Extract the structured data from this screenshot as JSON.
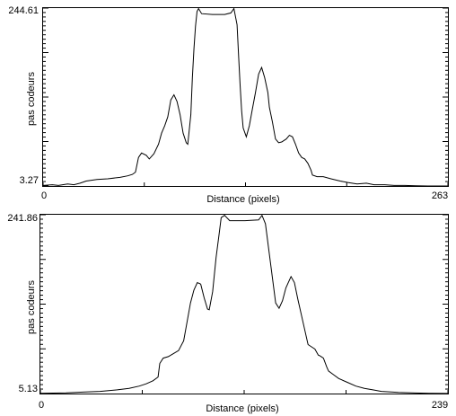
{
  "chart_data": [
    {
      "type": "line",
      "xlabel": "Distance (pixels)",
      "ylabel": "pas codeurs",
      "xlim": [
        0,
        263
      ],
      "ylim": [
        3.27,
        244.61
      ],
      "x_tick_labels": [
        "0",
        "263"
      ],
      "y_tick_labels": [
        "3.27",
        "244.61"
      ],
      "grid": false,
      "line_color": "#000000",
      "points": [
        [
          0,
          4
        ],
        [
          6,
          5
        ],
        [
          10,
          4
        ],
        [
          16,
          6
        ],
        [
          20,
          5
        ],
        [
          24,
          7
        ],
        [
          28,
          10
        ],
        [
          35,
          12
        ],
        [
          42,
          13
        ],
        [
          50,
          15
        ],
        [
          55,
          17
        ],
        [
          58,
          19
        ],
        [
          60,
          22
        ],
        [
          62,
          42
        ],
        [
          64,
          48
        ],
        [
          67,
          45
        ],
        [
          69,
          40
        ],
        [
          72,
          47
        ],
        [
          75,
          60
        ],
        [
          77,
          75
        ],
        [
          79,
          85
        ],
        [
          81,
          97
        ],
        [
          83,
          120
        ],
        [
          85,
          127
        ],
        [
          87,
          118
        ],
        [
          89,
          100
        ],
        [
          91,
          75
        ],
        [
          93,
          62
        ],
        [
          94,
          60
        ],
        [
          96,
          100
        ],
        [
          97,
          150
        ],
        [
          98,
          190
        ],
        [
          99,
          220
        ],
        [
          100,
          240
        ],
        [
          101,
          244
        ],
        [
          103,
          237
        ],
        [
          110,
          236
        ],
        [
          118,
          236
        ],
        [
          122,
          238
        ],
        [
          124,
          244
        ],
        [
          126,
          222
        ],
        [
          127,
          180
        ],
        [
          128,
          140
        ],
        [
          129,
          105
        ],
        [
          130,
          82
        ],
        [
          132,
          70
        ],
        [
          134,
          85
        ],
        [
          136,
          108
        ],
        [
          138,
          130
        ],
        [
          140,
          155
        ],
        [
          142,
          164
        ],
        [
          144,
          150
        ],
        [
          146,
          130
        ],
        [
          147,
          110
        ],
        [
          149,
          90
        ],
        [
          151,
          67
        ],
        [
          153,
          62
        ],
        [
          155,
          63
        ],
        [
          158,
          67
        ],
        [
          160,
          72
        ],
        [
          162,
          70
        ],
        [
          164,
          60
        ],
        [
          166,
          48
        ],
        [
          168,
          42
        ],
        [
          170,
          40
        ],
        [
          172,
          34
        ],
        [
          174,
          25
        ],
        [
          175,
          18
        ],
        [
          178,
          16
        ],
        [
          182,
          16
        ],
        [
          187,
          13
        ],
        [
          193,
          10
        ],
        [
          198,
          8
        ],
        [
          204,
          6
        ],
        [
          210,
          7
        ],
        [
          215,
          5
        ],
        [
          222,
          5
        ],
        [
          228,
          4
        ],
        [
          235,
          4
        ],
        [
          242,
          3.5
        ],
        [
          250,
          3.3
        ],
        [
          263,
          3.3
        ]
      ]
    },
    {
      "type": "line",
      "xlabel": "Distance (pixels)",
      "ylabel": "pas codeurs",
      "xlim": [
        0,
        239
      ],
      "ylim": [
        5.13,
        241.86
      ],
      "x_tick_labels": [
        "0",
        "239"
      ],
      "y_tick_labels": [
        "5.13",
        "241.86"
      ],
      "grid": false,
      "line_color": "#000000",
      "points": [
        [
          0,
          5.5
        ],
        [
          15,
          6
        ],
        [
          25,
          7
        ],
        [
          35,
          8
        ],
        [
          45,
          10
        ],
        [
          52,
          12
        ],
        [
          58,
          15
        ],
        [
          62,
          18
        ],
        [
          66,
          22
        ],
        [
          69,
          27
        ],
        [
          70,
          45
        ],
        [
          72,
          52
        ],
        [
          75,
          54
        ],
        [
          78,
          58
        ],
        [
          81,
          62
        ],
        [
          84,
          75
        ],
        [
          86,
          100
        ],
        [
          88,
          125
        ],
        [
          90,
          142
        ],
        [
          92,
          152
        ],
        [
          94,
          150
        ],
        [
          96,
          132
        ],
        [
          98,
          117
        ],
        [
          99,
          116
        ],
        [
          101,
          140
        ],
        [
          103,
          185
        ],
        [
          105,
          220
        ],
        [
          106,
          238
        ],
        [
          108,
          241
        ],
        [
          111,
          234
        ],
        [
          120,
          234
        ],
        [
          128,
          235
        ],
        [
          130,
          241
        ],
        [
          132,
          230
        ],
        [
          134,
          195
        ],
        [
          136,
          160
        ],
        [
          138,
          125
        ],
        [
          140,
          118
        ],
        [
          142,
          128
        ],
        [
          144,
          145
        ],
        [
          147,
          160
        ],
        [
          149,
          152
        ],
        [
          151,
          130
        ],
        [
          153,
          110
        ],
        [
          155,
          90
        ],
        [
          157,
          70
        ],
        [
          159,
          67
        ],
        [
          161,
          64
        ],
        [
          163,
          56
        ],
        [
          164,
          55
        ],
        [
          166,
          52
        ],
        [
          168,
          40
        ],
        [
          169,
          35
        ],
        [
          172,
          30
        ],
        [
          175,
          25
        ],
        [
          180,
          20
        ],
        [
          185,
          15
        ],
        [
          190,
          12
        ],
        [
          195,
          10
        ],
        [
          200,
          8
        ],
        [
          210,
          6.5
        ],
        [
          220,
          5.8
        ],
        [
          228,
          5.4
        ],
        [
          239,
          5.2
        ]
      ]
    }
  ]
}
